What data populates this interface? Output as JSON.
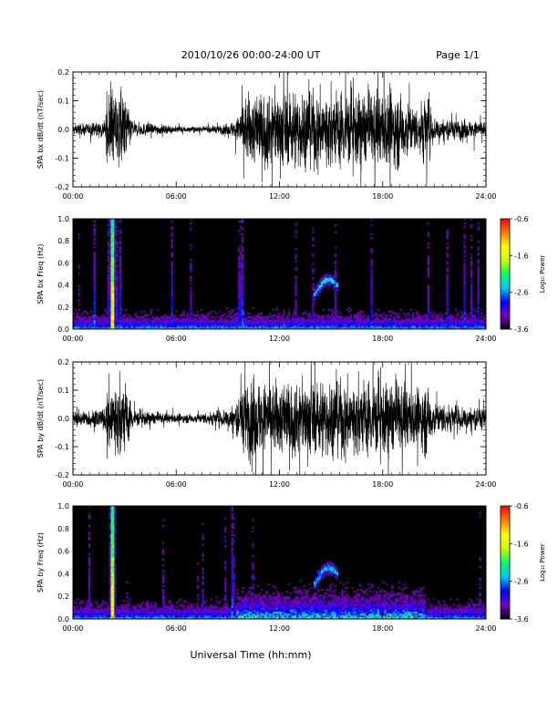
{
  "header": {
    "title": "2010/10/26  00:00-24:00 UT",
    "page": "Page 1/1"
  },
  "footer": {
    "xlabel": "Universal Time (hh:mm)"
  },
  "chart_data": [
    {
      "type": "line",
      "ylabel": "SPA bx dB/dt (nT/sec)",
      "xlabel": "",
      "xlim": [
        "00:00",
        "24:00"
      ],
      "ylim": [
        -0.2,
        0.2
      ],
      "x_ticks": [
        "00:00",
        "06:00",
        "12:00",
        "18:00",
        "24:00"
      ],
      "y_ticks": [
        "-0.2",
        "-0.1",
        "0.0",
        "0.1",
        "0.2"
      ],
      "series": [
        {
          "color": "#000000",
          "envelope_hours": [
            0,
            1,
            1.9,
            2.0,
            2.5,
            3.0,
            3.5,
            4.5,
            6,
            7.5,
            9,
            9.5,
            10,
            11,
            12,
            13,
            14,
            15,
            16,
            17,
            18,
            19,
            20,
            20.5,
            21,
            22,
            23,
            24
          ],
          "envelope_amplitude": [
            0.03,
            0.035,
            0.05,
            0.22,
            0.22,
            0.22,
            0.04,
            0.035,
            0.02,
            0.015,
            0.03,
            0.06,
            0.2,
            0.22,
            0.22,
            0.22,
            0.22,
            0.22,
            0.22,
            0.22,
            0.22,
            0.22,
            0.12,
            0.22,
            0.07,
            0.06,
            0.05,
            0.05
          ]
        }
      ]
    },
    {
      "type": "heatmap",
      "ylabel": "SPA bx Freq (Hz)",
      "xlabel": "",
      "xlim": [
        "00:00",
        "24:00"
      ],
      "ylim": [
        0.0,
        1.0
      ],
      "x_ticks": [
        "00:00",
        "06:00",
        "12:00",
        "18:00",
        "24:00"
      ],
      "y_ticks": [
        "0.0",
        "0.2",
        "0.4",
        "0.6",
        "0.8",
        "1.0"
      ],
      "colorbar": {
        "label": "Log₁₀ Power",
        "ticks": [
          "-0.6",
          "-1.6",
          "-2.6",
          "-3.6"
        ],
        "range": [
          -3.6,
          -0.6
        ],
        "colors": [
          "#000000",
          "#7a00c8",
          "#0000ff",
          "#00c8ff",
          "#00ff60",
          "#c8ff00",
          "#ffff00",
          "#ff8000",
          "#ff0000"
        ]
      },
      "features": [
        {
          "kind": "burst",
          "time_hours": 2.3,
          "freq_max_hz": 1.0,
          "peak_log_power": -0.6
        },
        {
          "kind": "arc",
          "time_hours_start": 14.0,
          "time_hours_end": 15.4,
          "freq_hz": [
            0.3,
            0.45
          ],
          "peak_log_power": -2.2
        },
        {
          "kind": "band",
          "time_hours_start": 9.5,
          "time_hours_end": 20.5,
          "freq_max_hz": 0.15,
          "peak_log_power": -2.4
        }
      ]
    },
    {
      "type": "line",
      "ylabel": "SPA by dB/dt (nT/sec)",
      "xlabel": "",
      "xlim": [
        "00:00",
        "24:00"
      ],
      "ylim": [
        -0.2,
        0.2
      ],
      "x_ticks": [
        "00:00",
        "06:00",
        "12:00",
        "18:00",
        "24:00"
      ],
      "y_ticks": [
        "-0.2",
        "-0.1",
        "0.0",
        "0.1",
        "0.2"
      ],
      "series": [
        {
          "color": "#000000",
          "envelope_hours": [
            0,
            1,
            1.9,
            2.0,
            2.5,
            3.0,
            3.5,
            4.5,
            6,
            7.5,
            9,
            9.5,
            10,
            11,
            12,
            13,
            14,
            15,
            16,
            17,
            18,
            19,
            20,
            20.5,
            21,
            22,
            23,
            24
          ],
          "envelope_amplitude": [
            0.04,
            0.05,
            0.06,
            0.22,
            0.22,
            0.22,
            0.05,
            0.04,
            0.025,
            0.03,
            0.06,
            0.1,
            0.22,
            0.22,
            0.22,
            0.22,
            0.22,
            0.22,
            0.22,
            0.22,
            0.22,
            0.22,
            0.15,
            0.22,
            0.1,
            0.08,
            0.07,
            0.07
          ]
        }
      ]
    },
    {
      "type": "heatmap",
      "ylabel": "SPA by Freq (Hz)",
      "xlabel": "",
      "xlim": [
        "00:00",
        "24:00"
      ],
      "ylim": [
        0.0,
        1.0
      ],
      "x_ticks": [
        "00:00",
        "06:00",
        "12:00",
        "18:00",
        "24:00"
      ],
      "y_ticks": [
        "0.0",
        "0.2",
        "0.4",
        "0.6",
        "0.8",
        "1.0"
      ],
      "colorbar": {
        "label": "Log₁₀ Power",
        "ticks": [
          "-0.6",
          "-1.6",
          "-2.6",
          "-3.6"
        ],
        "range": [
          -3.6,
          -0.6
        ],
        "colors": [
          "#000000",
          "#7a00c8",
          "#0000ff",
          "#00c8ff",
          "#00ff60",
          "#c8ff00",
          "#ffff00",
          "#ff8000",
          "#ff0000"
        ]
      },
      "features": [
        {
          "kind": "burst",
          "time_hours": 2.3,
          "freq_max_hz": 1.0,
          "peak_log_power": -0.6
        },
        {
          "kind": "arc",
          "time_hours_start": 14.0,
          "time_hours_end": 15.4,
          "freq_hz": [
            0.3,
            0.45
          ],
          "peak_log_power": -2.2
        },
        {
          "kind": "band",
          "time_hours_start": 9.5,
          "time_hours_end": 20.5,
          "freq_max_hz": 0.25,
          "peak_log_power": -2.0
        }
      ]
    }
  ]
}
